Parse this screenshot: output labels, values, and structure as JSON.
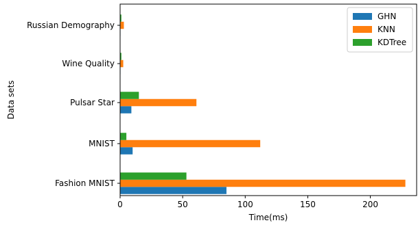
{
  "chart_data": {
    "type": "bar",
    "orientation": "horizontal",
    "categories": [
      "Fashion MNIST",
      "MNIST",
      "Pulsar Star",
      "Wine Quality",
      "Russian Demography"
    ],
    "series": [
      {
        "name": "GHN",
        "color": "#1f77b4",
        "values": [
          85,
          10,
          9,
          0.3,
          0.3
        ]
      },
      {
        "name": "KNN",
        "color": "#ff7f0e",
        "values": [
          228,
          112,
          61,
          2.5,
          3
        ]
      },
      {
        "name": "KDTree",
        "color": "#2ca02c",
        "values": [
          53,
          5,
          15,
          1,
          1
        ]
      }
    ],
    "xlabel": "Time(ms)",
    "ylabel": "Data sets",
    "xlim": [
      0,
      237
    ],
    "xticks": [
      0,
      50,
      100,
      150,
      200
    ],
    "grid": false,
    "legend_position": "top-right"
  }
}
